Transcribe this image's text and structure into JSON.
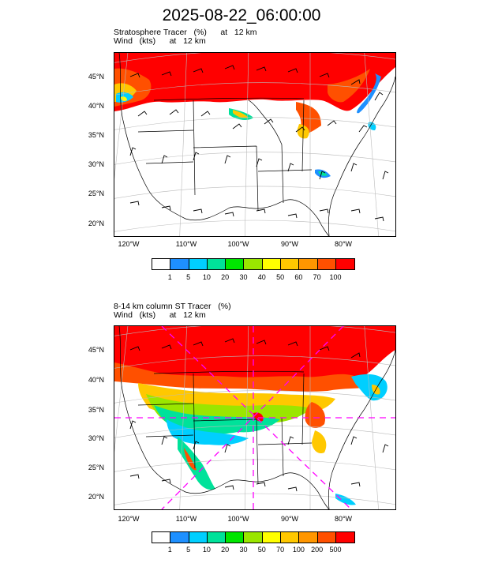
{
  "title": "2025-08-22_06:00:00",
  "panels": [
    {
      "label_line1": "Stratosphere Tracer   (%)      at   12 km",
      "label_line2": "Wind   (kts)      at   12 km",
      "lat_labels": [
        "45°N",
        "40°N",
        "35°N",
        "30°N",
        "25°N",
        "20°N"
      ],
      "lon_labels": [
        "120°W",
        "110°W",
        "100°W",
        "90°W",
        "80°W"
      ],
      "colorbar_labels": [
        "1",
        "5",
        "10",
        "20",
        "30",
        "40",
        "50",
        "60",
        "70",
        "100"
      ]
    },
    {
      "label_line1": "8-14 km column ST Tracer   (%)",
      "label_line2": "Wind   (kts)      at   12 km",
      "lat_labels": [
        "45°N",
        "40°N",
        "35°N",
        "30°N",
        "25°N",
        "20°N"
      ],
      "lon_labels": [
        "120°W",
        "110°W",
        "100°W",
        "90°W",
        "80°W"
      ],
      "colorbar_labels": [
        "1",
        "5",
        "10",
        "20",
        "30",
        "50",
        "70",
        "100",
        "200",
        "500"
      ]
    }
  ],
  "colorbar_colors": [
    "#ffffff",
    "#1e90ff",
    "#00cfff",
    "#00e29a",
    "#00e600",
    "#9ae600",
    "#ffff00",
    "#ffc800",
    "#ff9600",
    "#ff5000",
    "#ff0000"
  ],
  "colors": {
    "tracer_high": "#ff0000",
    "tracer_mid": "#ff5000",
    "tracer_low": "#ffc800",
    "cross_section_line": "#ff00ff"
  }
}
